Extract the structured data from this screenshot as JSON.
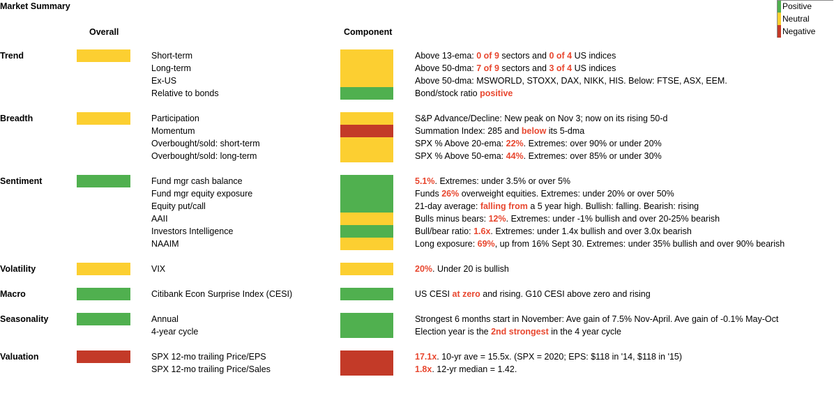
{
  "title": "Market Summary",
  "headers": {
    "overall": "Overall",
    "component": "Component"
  },
  "colors": {
    "positive": "#50b04f",
    "neutral": "#fccf31",
    "negative": "#c33a28",
    "highlight": "#e8472f"
  },
  "legend": [
    {
      "label": "Positive",
      "status": "positive"
    },
    {
      "label": "Neutral",
      "status": "neutral"
    },
    {
      "label": "Negative",
      "status": "negative"
    }
  ],
  "categories": [
    {
      "name": "Trend",
      "overall": "neutral",
      "items": [
        {
          "label": "Short-term",
          "status": "neutral",
          "desc": [
            {
              "t": "Above 13-ema: "
            },
            {
              "t": "0 of 9",
              "hl": true
            },
            {
              "t": " sectors and "
            },
            {
              "t": "0 of 4",
              "hl": true
            },
            {
              "t": " US indices"
            }
          ]
        },
        {
          "label": "Long-term",
          "status": "neutral",
          "desc": [
            {
              "t": "Above 50-dma: "
            },
            {
              "t": "7 of 9",
              "hl": true
            },
            {
              "t": " sectors and "
            },
            {
              "t": "3 of 4",
              "hl": true
            },
            {
              "t": " US indices"
            }
          ]
        },
        {
          "label": "Ex-US",
          "status": "neutral",
          "desc": [
            {
              "t": "Above 50-dma: MSWORLD, STOXX, DAX,  NIKK, HIS. Below: FTSE, ASX, EEM."
            }
          ]
        },
        {
          "label": "Relative to bonds",
          "status": "positive",
          "desc": [
            {
              "t": "Bond/stock ratio "
            },
            {
              "t": "positive",
              "hl": true
            }
          ]
        }
      ]
    },
    {
      "name": "Breadth",
      "overall": "neutral",
      "items": [
        {
          "label": "Participation",
          "status": "neutral",
          "desc": [
            {
              "t": "S&P Advance/Decline: New peak on Nov 3; now on its rising 50-d"
            }
          ]
        },
        {
          "label": "Momentum",
          "status": "negative",
          "desc": [
            {
              "t": "Summation Index: 285 and "
            },
            {
              "t": "below",
              "hl": true
            },
            {
              "t": " its 5-dma"
            }
          ]
        },
        {
          "label": "Overbought/sold: short-term",
          "status": "neutral",
          "desc": [
            {
              "t": "SPX % Above 20-ema: "
            },
            {
              "t": "22%",
              "hl": true
            },
            {
              "t": ". Extremes: over 90% or under 20%"
            }
          ]
        },
        {
          "label": "Overbought/sold: long-term",
          "status": "neutral",
          "desc": [
            {
              "t": "SPX % Above 50-ema: "
            },
            {
              "t": "44%",
              "hl": true
            },
            {
              "t": ". Extremes: over 85% or under 30%"
            }
          ]
        }
      ]
    },
    {
      "name": "Sentiment",
      "overall": "positive",
      "items": [
        {
          "label": "Fund mgr cash balance",
          "status": "positive",
          "desc": [
            {
              "t": "5.1%",
              "hl": true
            },
            {
              "t": ". Extremes: under 3.5% or over 5%"
            }
          ]
        },
        {
          "label": "Fund mgr equity exposure",
          "status": "positive",
          "desc": [
            {
              "t": "Funds "
            },
            {
              "t": "26%",
              "hl": true
            },
            {
              "t": " overweight equities. Extremes: under 20% or over 50%"
            }
          ]
        },
        {
          "label": "Equity put/call",
          "status": "positive",
          "desc": [
            {
              "t": "21-day average: "
            },
            {
              "t": "falling from",
              "hl": true
            },
            {
              "t": " a 5 year high. Bullish: falling. Bearish: rising"
            }
          ]
        },
        {
          "label": "AAII",
          "status": "neutral",
          "desc": [
            {
              "t": "Bulls minus bears: "
            },
            {
              "t": "12%",
              "hl": true
            },
            {
              "t": ". Extremes: under -1% bullish and over 20-25% bearish"
            }
          ]
        },
        {
          "label": "Investors Intelligence",
          "status": "positive",
          "desc": [
            {
              "t": "Bull/bear ratio: "
            },
            {
              "t": "1.6x",
              "hl": true
            },
            {
              "t": ". Extremes: under 1.4x bullish and over 3.0x bearish"
            }
          ]
        },
        {
          "label": "NAAIM",
          "status": "neutral",
          "desc": [
            {
              "t": "Long exposure: "
            },
            {
              "t": "69%",
              "hl": true
            },
            {
              "t": ", up from 16% Sept 30. Extremes: under 35% bullish and over 90% bearish"
            }
          ]
        }
      ]
    },
    {
      "name": "Volatility",
      "overall": "neutral",
      "items": [
        {
          "label": "VIX",
          "status": "neutral",
          "desc": [
            {
              "t": "20%",
              "hl": true
            },
            {
              "t": ". Under 20 is bullish"
            }
          ]
        }
      ]
    },
    {
      "name": "Macro",
      "overall": "positive",
      "items": [
        {
          "label": "Citibank Econ Surprise Index (CESI)",
          "status": "positive",
          "desc": [
            {
              "t": "US CESI "
            },
            {
              "t": "at zero",
              "hl": true
            },
            {
              "t": " and rising.  G10 CESI above zero and rising"
            }
          ]
        }
      ]
    },
    {
      "name": "Seasonality",
      "overall": "positive",
      "items": [
        {
          "label": "Annual",
          "status": "positive",
          "desc": [
            {
              "t": "Strongest 6 months start in November: Ave gain of 7.5% Nov-April. Ave gain of -0.1% May-Oct"
            }
          ]
        },
        {
          "label": "4-year cycle",
          "status": "positive",
          "desc": [
            {
              "t": "Election year is the "
            },
            {
              "t": "2nd strongest",
              "hl": true
            },
            {
              "t": " in the 4 year cycle"
            }
          ]
        }
      ]
    },
    {
      "name": "Valuation",
      "overall": "negative",
      "items": [
        {
          "label": "SPX 12-mo trailing Price/EPS",
          "status": "negative",
          "desc": [
            {
              "t": "17.1x",
              "hl": true
            },
            {
              "t": ". 10-yr ave = 15.5x.  (SPX = 2020; EPS: $118 in '14, $118 in '15)"
            }
          ]
        },
        {
          "label": "SPX 12-mo trailing Price/Sales",
          "status": "negative",
          "desc": [
            {
              "t": "1.8x",
              "hl": true
            },
            {
              "t": ". 12-yr median = 1.42."
            }
          ]
        }
      ]
    }
  ]
}
